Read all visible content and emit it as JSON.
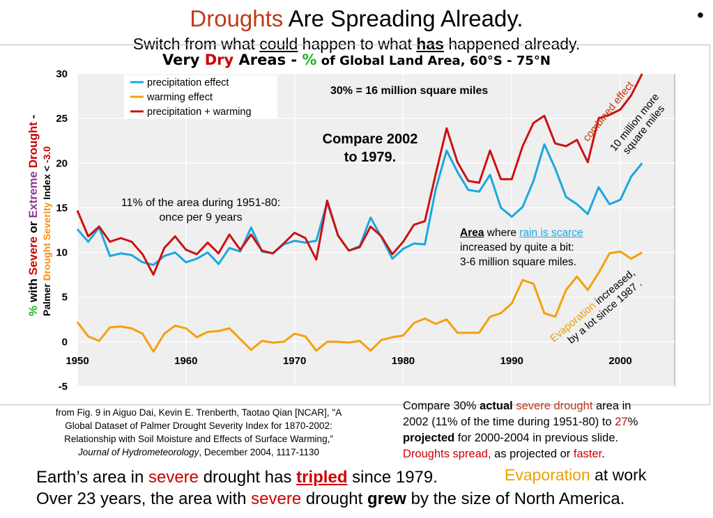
{
  "slide": {
    "title_word": "Droughts",
    "title_rest": " Are Spreading Already.",
    "subtitle_pre": "Switch from what ",
    "subtitle_could": "could",
    "subtitle_mid": " happen to what ",
    "subtitle_has": "has",
    "subtitle_post": " happened already.",
    "bullet": "•"
  },
  "chart_heading": {
    "part1": "Very ",
    "dry": "Dry",
    "part2": " Areas - ",
    "pct": "%",
    "part3": " of Global Land Area, ",
    "lat": "60°S - 75°N"
  },
  "y_axis_label": {
    "pct": "%",
    "with": " with ",
    "severe": "Severe",
    "or": " or ",
    "extreme": "Extreme",
    "drought": " Drought",
    "dash": " -",
    "palmer": "Palmer ",
    "dsev": "Drought Severity",
    "index": " Index < ",
    "thresh": "-3.0"
  },
  "chart_data": {
    "type": "line",
    "xlim": [
      1950,
      2005
    ],
    "ylim": [
      -5,
      30
    ],
    "x_ticks": [
      1950,
      1960,
      1970,
      1980,
      1990,
      2000
    ],
    "y_ticks": [
      -5,
      0,
      5,
      10,
      15,
      20,
      25,
      30
    ],
    "x_tick_labels": [
      "1950",
      "1960",
      "1970",
      "1980",
      "1990",
      "2000"
    ],
    "y_tick_labels": [
      "-5",
      "0",
      "5",
      "10",
      "15",
      "20",
      "25",
      "30"
    ],
    "grid": true,
    "legend_position": "top-left",
    "x": [
      1950,
      1951,
      1952,
      1953,
      1954,
      1955,
      1956,
      1957,
      1958,
      1959,
      1960,
      1961,
      1962,
      1963,
      1964,
      1965,
      1966,
      1967,
      1968,
      1969,
      1970,
      1971,
      1972,
      1973,
      1974,
      1975,
      1976,
      1977,
      1978,
      1979,
      1980,
      1981,
      1982,
      1983,
      1984,
      1985,
      1986,
      1987,
      1988,
      1989,
      1990,
      1991,
      1992,
      1993,
      1994,
      1995,
      1996,
      1997,
      1998,
      1999,
      2000,
      2001,
      2002
    ],
    "series": [
      {
        "name": "precipitation effect",
        "color": "#1aa7e0",
        "values": [
          12.6,
          11.2,
          12.8,
          9.6,
          9.9,
          9.7,
          8.9,
          8.6,
          9.6,
          10.0,
          8.9,
          9.3,
          10.0,
          8.7,
          10.5,
          10.1,
          12.8,
          10.1,
          9.9,
          10.9,
          11.3,
          11.1,
          11.3,
          15.6,
          11.9,
          10.2,
          10.7,
          13.9,
          11.7,
          9.3,
          10.4,
          11.0,
          10.9,
          17.1,
          21.4,
          19.0,
          17.0,
          16.8,
          18.7,
          15.0,
          14.0,
          15.1,
          18.0,
          22.1,
          19.4,
          16.2,
          15.4,
          14.3,
          17.3,
          15.4,
          15.9,
          18.5,
          20.0
        ]
      },
      {
        "name": "warming effect",
        "color": "#f5a00a",
        "values": [
          2.2,
          0.6,
          0.1,
          1.6,
          1.7,
          1.5,
          0.9,
          -1.1,
          0.9,
          1.8,
          1.5,
          0.5,
          1.1,
          1.2,
          1.5,
          0.3,
          -0.9,
          0.1,
          -0.1,
          0.0,
          0.9,
          0.6,
          -1.0,
          0.0,
          0.0,
          -0.1,
          0.1,
          -1.0,
          0.2,
          0.5,
          0.7,
          2.1,
          2.6,
          2.0,
          2.5,
          1.0,
          1.0,
          1.0,
          2.8,
          3.2,
          4.3,
          6.9,
          6.5,
          3.2,
          2.8,
          5.8,
          7.3,
          5.8,
          7.7,
          9.9,
          10.1,
          9.3,
          10.0
        ]
      },
      {
        "name": "precipitation + warming",
        "color": "#cc1111",
        "values": [
          14.7,
          11.8,
          12.9,
          11.2,
          11.6,
          11.2,
          9.8,
          7.5,
          10.5,
          11.8,
          10.3,
          9.8,
          11.1,
          9.9,
          12.0,
          10.3,
          12.0,
          10.2,
          9.9,
          11.0,
          12.2,
          11.6,
          9.2,
          15.8,
          11.9,
          10.2,
          10.6,
          12.9,
          11.8,
          9.8,
          11.2,
          13.1,
          13.5,
          18.8,
          23.9,
          20.1,
          18.0,
          17.8,
          21.4,
          18.2,
          18.2,
          21.9,
          24.5,
          25.3,
          22.2,
          21.9,
          22.6,
          20.1,
          25.0,
          25.4,
          26.0,
          27.6,
          30.0
        ]
      }
    ]
  },
  "annotations": {
    "thirty_pct": "30% = 16 million square miles",
    "compare_l1": "Compare 2002",
    "compare_l2": "to 1979.",
    "eleven_l1": "11% of the area during 1951-80:",
    "eleven_l2": "once per 9 years",
    "area_word": "Area",
    "area_where": " where ",
    "rain_scarce": "rain is scarce",
    "area_l2": "increased by quite a bit:",
    "area_l3": "3-6 million square miles.",
    "combined": "combined effect",
    "ten_l1": "10 million more",
    "ten_l2": "square miles",
    "evap_word": "Evaporation",
    "evap_rest": " increased,",
    "evap_l2": "by a lot since 1987 ."
  },
  "citation": {
    "l1": "from Fig. 9 in Aiguo Dai, Kevin E. Trenberth, Taotao Qian [NCAR], \"A",
    "l2": "Global Dataset of Palmer Drought Severity Index for 1870-2002:",
    "l3": "Relationship with Soil Moisture and Effects of Surface Warming,”",
    "l4_italic": "Journal of Hydrometeorology",
    "l4_rest": ", December 2004, 1117-1130"
  },
  "compare_note": {
    "a": "Compare 30% ",
    "actual": "actual",
    "b": " ",
    "severe_drought": "severe drought",
    "c": " area in",
    "d": "2002 (11% of the time during 1951-80) to ",
    "twentyseven": "27",
    "e": "%",
    "projected": "projected",
    "f": " for 2000-2004 in previous slide.",
    "droughts_spread": "Droughts spread,",
    "g": " as projected or ",
    "faster": "faster",
    "h": "."
  },
  "footer": {
    "l1_a": "Earth’s area in ",
    "l1_severe": "severe",
    "l1_b": " drought has ",
    "l1_tripled": "tripled",
    "l1_c": " since 1979.",
    "l2_a": "Over 23 years, the area with ",
    "l2_severe": "severe",
    "l2_b": " drought ",
    "l2_grew": "grew",
    "l2_c": " by the size of North America.",
    "evap_word": "Evaporation",
    "evap_rest": " at work"
  }
}
